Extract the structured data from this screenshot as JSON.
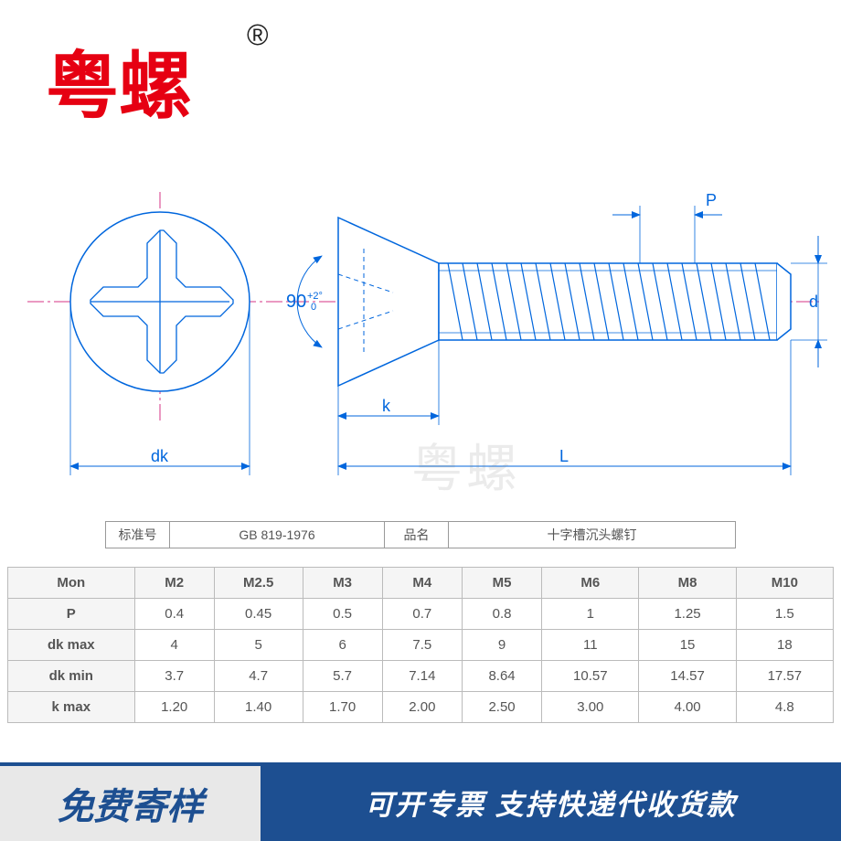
{
  "logo_text": "粤螺",
  "reg_mark": "®",
  "watermark": "粤螺",
  "diagram": {
    "angle_label": "90",
    "angle_tol": "+2°\n 0",
    "dim_P": "P",
    "dim_d": "d",
    "dim_k": "k",
    "dim_L": "L",
    "dim_dk": "dk",
    "line_color": "#0066dd",
    "center_color": "#d63384",
    "dim_color": "#0066dd"
  },
  "info": {
    "std_label": "标准号",
    "std_value": "GB 819-1976",
    "name_label": "品名",
    "name_value": "十字槽沉头螺钉"
  },
  "table": {
    "columns": [
      "Mon",
      "M2",
      "M2.5",
      "M3",
      "M4",
      "M5",
      "M6",
      "M8",
      "M10"
    ],
    "rows": [
      {
        "h": "P",
        "v": [
          "0.4",
          "0.45",
          "0.5",
          "0.7",
          "0.8",
          "1",
          "1.25",
          "1.5"
        ]
      },
      {
        "h": "dk max",
        "v": [
          "4",
          "5",
          "6",
          "7.5",
          "9",
          "11",
          "15",
          "18"
        ]
      },
      {
        "h": "dk min",
        "v": [
          "3.7",
          "4.7",
          "5.7",
          "7.14",
          "8.64",
          "10.57",
          "14.57",
          "17.57"
        ]
      },
      {
        "h": "k max",
        "v": [
          "1.20",
          "1.40",
          "1.70",
          "2.00",
          "2.50",
          "3.00",
          "4.00",
          "4.8"
        ]
      }
    ]
  },
  "footer": {
    "left": "免费寄样",
    "right": "可开专票 支持快递代收货款"
  }
}
